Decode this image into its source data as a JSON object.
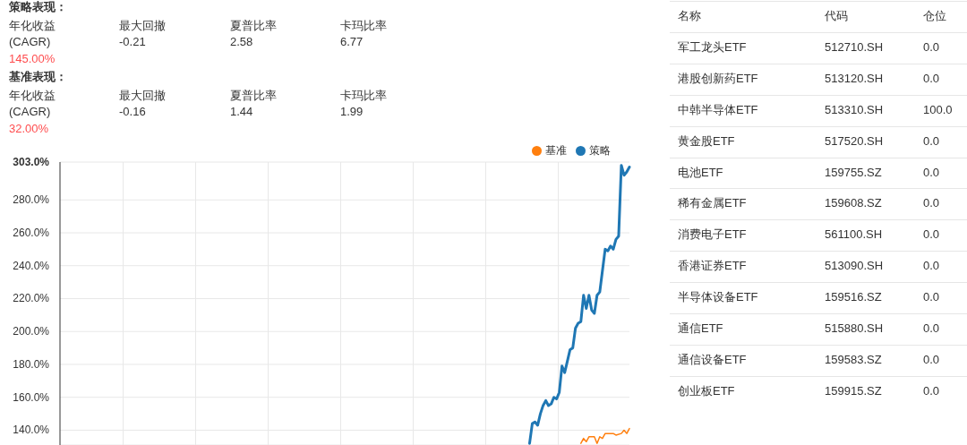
{
  "chart_data": [
    {
      "type": "other",
      "annotations": [
        "策略表现：",
        "年化收益",
        "(CAGR)",
        "145.00%",
        "最大回撤",
        "-0.21",
        "夏普比率",
        "2.58",
        "卡玛比率",
        "6.77",
        "基准表现：",
        "年化收益",
        "(CAGR)",
        "32.00%",
        "最大回撤",
        "-0.16",
        "夏普比率",
        "1.44",
        "卡玛比率",
        "1.99"
      ]
    },
    {
      "type": "line",
      "legend": "top right",
      "grid": true,
      "categories": [
        null,
        null,
        null,
        null,
        null,
        null,
        null,
        null,
        null,
        null,
        null,
        null,
        null,
        null,
        null,
        null,
        null,
        null,
        null,
        null,
        null,
        null,
        null,
        null,
        null,
        null,
        null,
        null,
        null,
        null,
        null,
        null,
        null,
        null,
        null,
        null,
        null,
        null,
        null,
        null,
        null,
        null,
        null,
        null,
        null,
        null,
        null,
        null,
        null,
        null,
        null,
        null,
        null,
        null,
        null,
        null,
        null,
        null,
        null,
        null,
        null,
        null,
        null,
        null,
        null,
        null,
        null,
        null,
        null,
        null,
        null,
        null,
        null,
        null,
        null,
        null,
        null,
        null,
        null,
        null,
        null,
        null,
        null,
        null,
        null,
        null,
        null,
        null,
        null,
        null,
        null,
        null,
        null,
        null,
        null,
        null,
        null,
        null,
        null,
        null,
        null,
        null,
        null,
        null,
        null,
        null,
        null,
        null,
        null,
        null,
        null,
        null,
        null,
        null,
        null,
        null,
        null,
        null,
        null,
        null,
        null,
        null,
        null,
        null,
        null,
        null,
        null,
        null,
        null,
        null,
        null,
        null,
        null,
        null,
        null,
        null,
        null,
        null,
        null,
        null,
        null,
        null,
        null,
        null,
        null,
        null,
        null,
        null,
        null,
        null,
        null,
        null,
        null,
        null,
        null,
        null,
        null,
        null,
        null,
        null,
        null,
        null,
        null,
        null,
        null,
        null,
        null,
        null,
        null,
        null,
        null,
        null,
        null,
        null,
        null,
        null,
        null,
        null,
        null,
        null,
        null,
        null,
        null,
        null,
        null,
        null,
        null,
        null,
        null,
        null,
        null,
        null,
        null,
        null,
        null,
        null,
        null,
        null,
        null,
        null,
        null,
        null,
        null,
        null,
        null,
        null,
        null,
        null,
        null,
        null,
        null,
        null
      ],
      "ylim": [
        131,
        303
      ],
      "yticks": [
        {
          "value": 140,
          "label": "140.0%"
        },
        {
          "value": 160,
          "label": "160.0%"
        },
        {
          "value": 180,
          "label": "180.0%"
        },
        {
          "value": 200,
          "label": "200.0%"
        },
        {
          "value": 220,
          "label": "220.0%"
        },
        {
          "value": 240,
          "label": "240.0%"
        },
        {
          "value": 260,
          "label": "260.0%"
        },
        {
          "value": 280,
          "label": "280.0%"
        },
        {
          "value": 303,
          "label": "303.0%"
        }
      ],
      "series": [
        {
          "name": "策略",
          "color": "#1f77b4",
          "values": [
            null,
            null,
            null,
            null,
            null,
            null,
            null,
            null,
            null,
            null,
            null,
            null,
            null,
            null,
            null,
            null,
            null,
            null,
            null,
            null,
            null,
            null,
            null,
            null,
            null,
            null,
            null,
            null,
            null,
            null,
            null,
            null,
            null,
            null,
            null,
            null,
            null,
            null,
            null,
            null,
            null,
            null,
            null,
            null,
            null,
            null,
            null,
            null,
            null,
            null,
            null,
            null,
            null,
            null,
            null,
            null,
            null,
            null,
            null,
            null,
            null,
            null,
            null,
            null,
            null,
            null,
            null,
            null,
            null,
            null,
            null,
            null,
            null,
            null,
            null,
            null,
            null,
            null,
            null,
            null,
            null,
            null,
            null,
            null,
            null,
            null,
            null,
            null,
            null,
            null,
            null,
            null,
            null,
            null,
            null,
            null,
            null,
            null,
            null,
            null,
            null,
            null,
            null,
            null,
            null,
            null,
            null,
            null,
            null,
            null,
            null,
            null,
            null,
            null,
            null,
            null,
            null,
            null,
            null,
            null,
            null,
            null,
            null,
            null,
            null,
            null,
            null,
            null,
            null,
            null,
            null,
            null,
            null,
            null,
            null,
            null,
            null,
            null,
            null,
            null,
            null,
            null,
            null,
            null,
            null,
            null,
            null,
            null,
            null,
            null,
            null,
            null,
            null,
            null,
            null,
            null,
            null,
            null,
            null,
            null,
            null,
            null,
            null,
            null,
            null,
            null,
            null,
            null,
            null,
            null,
            null,
            null,
            null,
            null,
            132,
            144,
            145,
            143,
            150,
            155,
            158,
            155,
            156,
            160,
            159,
            163,
            179,
            175,
            182,
            189,
            190,
            202,
            205,
            206,
            222,
            214,
            222,
            213,
            211,
            222,
            224,
            237,
            250,
            249,
            252,
            250,
            256,
            258,
            301,
            295,
            297,
            300
          ]
        },
        {
          "name": "基准",
          "color": "#ff7f0e",
          "values": [
            null,
            null,
            null,
            null,
            null,
            null,
            null,
            null,
            null,
            null,
            null,
            null,
            null,
            null,
            null,
            null,
            null,
            null,
            null,
            null,
            null,
            null,
            null,
            null,
            null,
            null,
            null,
            null,
            null,
            null,
            null,
            null,
            null,
            null,
            null,
            null,
            null,
            null,
            null,
            null,
            null,
            null,
            null,
            null,
            null,
            null,
            null,
            null,
            null,
            null,
            null,
            null,
            null,
            null,
            null,
            null,
            null,
            null,
            null,
            null,
            null,
            null,
            null,
            null,
            null,
            null,
            null,
            null,
            null,
            null,
            null,
            null,
            null,
            null,
            null,
            null,
            null,
            null,
            null,
            null,
            null,
            null,
            null,
            null,
            null,
            null,
            null,
            null,
            null,
            null,
            null,
            null,
            null,
            null,
            null,
            null,
            null,
            null,
            null,
            null,
            null,
            null,
            null,
            null,
            null,
            null,
            null,
            null,
            null,
            null,
            null,
            null,
            null,
            null,
            null,
            null,
            null,
            null,
            null,
            null,
            null,
            null,
            null,
            null,
            null,
            null,
            null,
            null,
            null,
            null,
            null,
            null,
            null,
            null,
            null,
            null,
            null,
            null,
            null,
            null,
            null,
            null,
            null,
            null,
            null,
            null,
            null,
            null,
            null,
            null,
            null,
            null,
            null,
            null,
            null,
            null,
            null,
            null,
            null,
            null,
            null,
            null,
            null,
            null,
            null,
            null,
            null,
            null,
            null,
            null,
            null,
            null,
            null,
            null,
            null,
            null,
            null,
            null,
            null,
            null,
            null,
            null,
            null,
            null,
            null,
            null,
            null,
            null,
            null,
            null,
            null,
            null,
            null,
            132,
            135,
            133,
            136,
            null,
            136,
            132,
            136,
            135,
            138,
            null,
            138,
            138,
            137,
            null,
            138,
            140,
            138,
            141
          ]
        }
      ]
    },
    {
      "type": "other",
      "annotations": [
        "名称",
        "代码",
        "仓位",
        "军工龙头ETF",
        "512710.SH",
        "0.0",
        "港股创新药ETF",
        "513120.SH",
        "0.0",
        "中韩半导体ETF",
        "513310.SH",
        "100.0",
        "黄金股ETF",
        "517520.SH",
        "0.0",
        "电池ETF",
        "159755.SZ",
        "0.0",
        "稀有金属ETF",
        "159608.SZ",
        "0.0",
        "消费电子ETF",
        "561100.SH",
        "0.0",
        "香港证券ETF",
        "513090.SH",
        "0.0",
        "半导体设备ETF",
        "159516.SZ",
        "0.0",
        "通信ETF",
        "515880.SH",
        "0.0",
        "通信设备ETF",
        "159583.SZ",
        "0.0",
        "创业板ETF",
        "159915.SZ",
        "0.0"
      ]
    }
  ]
}
